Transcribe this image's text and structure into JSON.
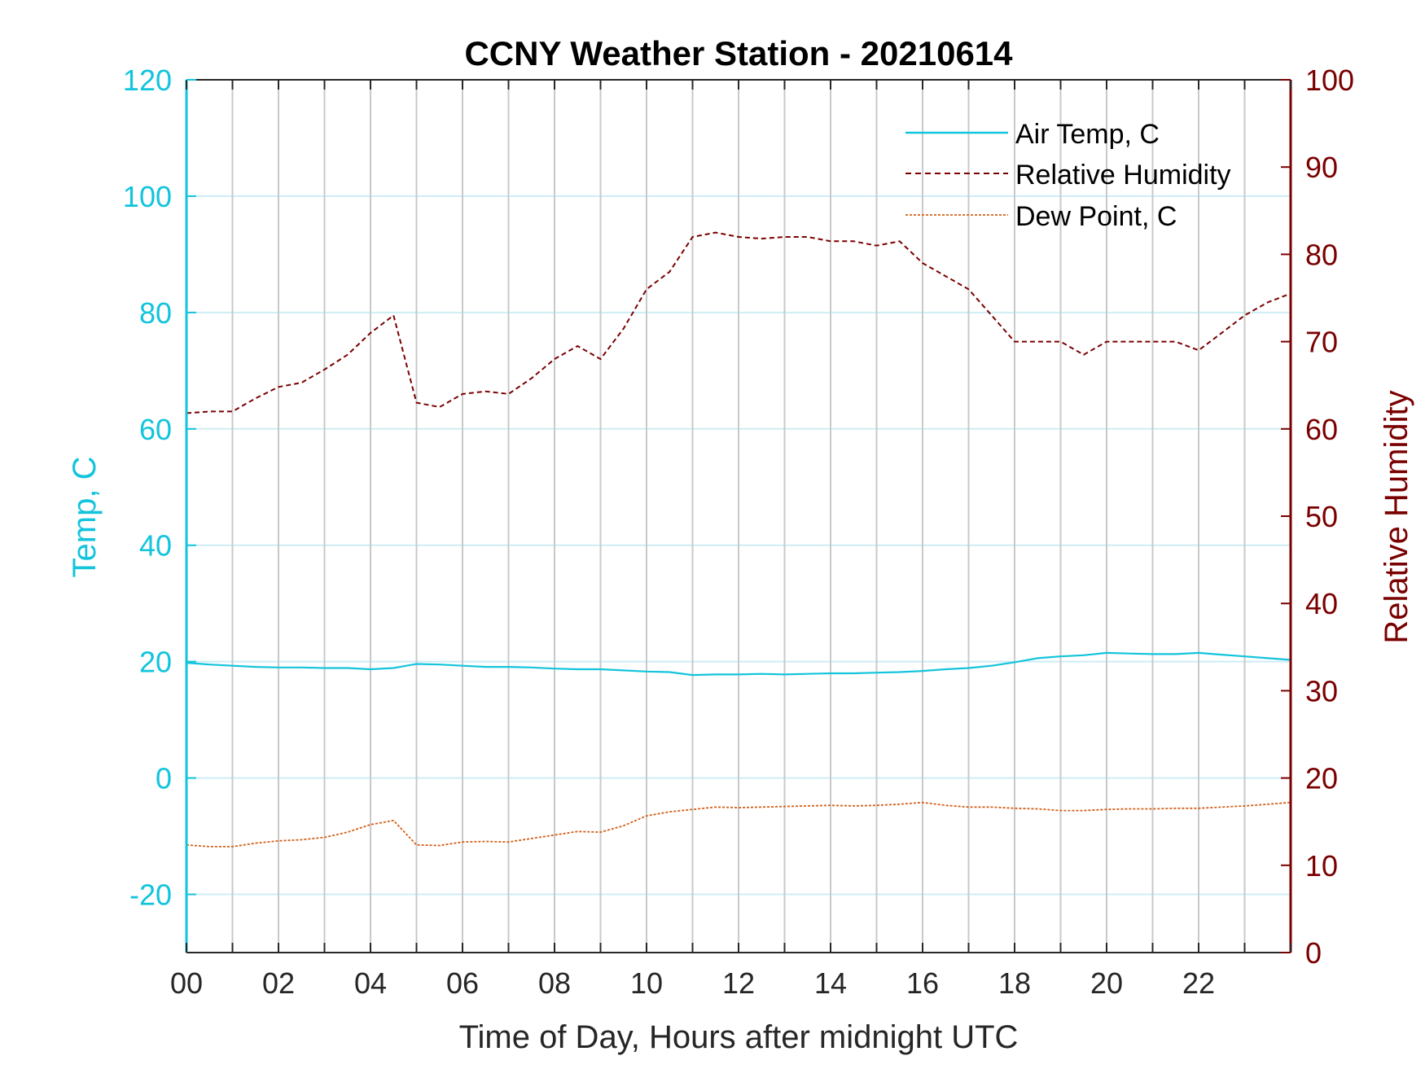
{
  "chart_data": {
    "type": "line",
    "title": "CCNY Weather Station - 20210614",
    "xlabel": "Time of Day, Hours after midnight UTC",
    "ylabel_left": "Temp, C",
    "ylabel_right": "Relative Humidity",
    "xlim": [
      0,
      24
    ],
    "ylim_left": [
      -30,
      120
    ],
    "ylim_right": [
      0,
      100
    ],
    "x_ticks": [
      "00",
      "02",
      "04",
      "06",
      "08",
      "10",
      "12",
      "14",
      "16",
      "18",
      "20",
      "22"
    ],
    "y_ticks_left": [
      "-20",
      "0",
      "20",
      "40",
      "60",
      "80",
      "100",
      "120"
    ],
    "y_ticks_right": [
      "0",
      "10",
      "20",
      "30",
      "40",
      "50",
      "60",
      "70",
      "80",
      "90",
      "100"
    ],
    "grid": true,
    "legend_position": "top-right",
    "colors": {
      "temp": "#12c4dc",
      "rh": "#7a0000",
      "dew": "#d2601a",
      "grid": "#c9c9c9"
    },
    "x": [
      0,
      0.5,
      1,
      1.5,
      2,
      2.5,
      3,
      3.5,
      4,
      4.5,
      5,
      5.5,
      6,
      6.5,
      7,
      7.5,
      8,
      8.5,
      9,
      9.5,
      10,
      10.5,
      11,
      11.5,
      12,
      12.5,
      13,
      13.5,
      14,
      14.5,
      15,
      15.5,
      16,
      16.5,
      17,
      17.5,
      18,
      18.5,
      19,
      19.5,
      20,
      20.5,
      21,
      21.5,
      22,
      22.5,
      23,
      23.5,
      24
    ],
    "series": [
      {
        "name": "Air Temp, C",
        "axis": "left",
        "style": "solid",
        "values": [
          19.8,
          19.5,
          19.3,
          19.1,
          19.0,
          19.0,
          18.9,
          18.9,
          18.7,
          18.9,
          19.6,
          19.5,
          19.3,
          19.1,
          19.1,
          19.0,
          18.8,
          18.7,
          18.7,
          18.5,
          18.3,
          18.2,
          17.7,
          17.8,
          17.8,
          17.9,
          17.8,
          17.9,
          18.0,
          18.0,
          18.1,
          18.2,
          18.4,
          18.7,
          18.9,
          19.3,
          19.9,
          20.6,
          20.9,
          21.1,
          21.5,
          21.4,
          21.3,
          21.3,
          21.5,
          21.2,
          20.9,
          20.6,
          20.3
        ]
      },
      {
        "name": "Relative Humidity",
        "axis": "right",
        "style": "dashed",
        "values": [
          61.8,
          62.0,
          62.0,
          63.5,
          64.8,
          65.3,
          66.8,
          68.5,
          71.0,
          73.0,
          63.0,
          62.5,
          64.0,
          64.3,
          64.0,
          65.8,
          68.0,
          69.5,
          68.0,
          71.5,
          76.0,
          78.0,
          82.0,
          82.5,
          82.0,
          81.8,
          82.0,
          82.0,
          81.5,
          81.5,
          81.0,
          81.5,
          79.0,
          77.5,
          76.0,
          73.0,
          70.0,
          70.0,
          70.0,
          68.5,
          70.0,
          70.0,
          70.0,
          70.0,
          69.0,
          71.0,
          73.0,
          74.5,
          75.5
        ]
      },
      {
        "name": "Dew Point, C",
        "axis": "left",
        "style": "dotted",
        "values": [
          -11.5,
          -11.8,
          -11.8,
          -11.2,
          -10.8,
          -10.6,
          -10.2,
          -9.3,
          -8.0,
          -7.3,
          -11.5,
          -11.6,
          -11.0,
          -10.9,
          -11.0,
          -10.4,
          -9.8,
          -9.2,
          -9.3,
          -8.2,
          -6.5,
          -5.8,
          -5.4,
          -5.0,
          -5.1,
          -5.0,
          -4.9,
          -4.8,
          -4.7,
          -4.8,
          -4.7,
          -4.5,
          -4.2,
          -4.7,
          -5.0,
          -5.0,
          -5.2,
          -5.3,
          -5.6,
          -5.6,
          -5.4,
          -5.3,
          -5.3,
          -5.2,
          -5.2,
          -5.0,
          -4.8,
          -4.5,
          -4.2
        ]
      }
    ]
  }
}
